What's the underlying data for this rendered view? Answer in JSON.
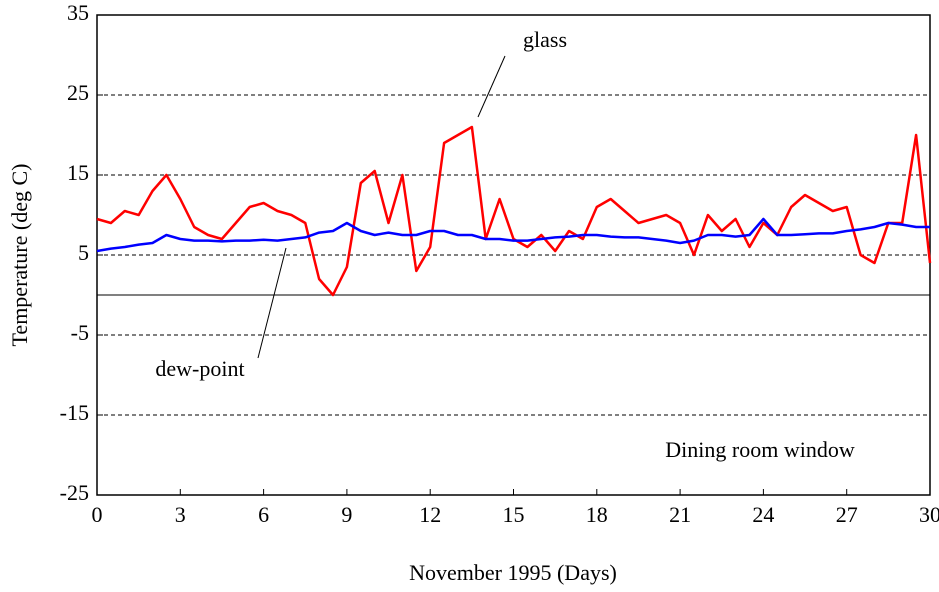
{
  "chart_data": {
    "type": "line",
    "xlabel": "November 1995 (Days)",
    "ylabel": "Temperature (deg C)",
    "annotations": [
      "glass",
      "dew-point",
      "Dining room window"
    ],
    "x": [
      0,
      0.5,
      1,
      1.5,
      2,
      2.5,
      3,
      3.5,
      4,
      4.5,
      5,
      5.5,
      6,
      6.5,
      7,
      7.5,
      8,
      8.5,
      9,
      9.5,
      10,
      10.5,
      11,
      11.5,
      12,
      12.5,
      13,
      13.5,
      14,
      14.5,
      15,
      15.5,
      16,
      16.5,
      17,
      17.5,
      18,
      18.5,
      19,
      19.5,
      20,
      20.5,
      21,
      21.5,
      22,
      22.5,
      23,
      23.5,
      24,
      24.5,
      25,
      25.5,
      26,
      26.5,
      27,
      27.5,
      28,
      28.5,
      29,
      29.5,
      30
    ],
    "series": [
      {
        "name": "glass",
        "color": "#ff0000",
        "values": [
          9.5,
          9,
          10.5,
          10,
          13,
          15,
          12,
          8.5,
          7.5,
          7,
          9,
          11,
          11.5,
          10.5,
          10,
          9,
          2,
          0,
          3.5,
          14,
          15.5,
          9,
          15,
          3,
          6,
          19,
          20,
          21,
          7,
          12,
          7,
          6,
          7.5,
          5.5,
          8,
          7,
          11,
          12,
          10.5,
          9,
          9.5,
          10,
          9,
          5,
          10,
          8,
          9.5,
          6,
          9,
          7.5,
          11,
          12.5,
          11.5,
          10.5,
          11,
          5,
          4,
          9,
          9,
          20,
          4
        ]
      },
      {
        "name": "dew-point",
        "color": "#0000ff",
        "values": [
          5.5,
          5.8,
          6,
          6.3,
          6.5,
          7.5,
          7,
          6.8,
          6.8,
          6.7,
          6.8,
          6.8,
          6.9,
          6.8,
          7,
          7.2,
          7.8,
          8,
          9,
          8,
          7.5,
          7.8,
          7.5,
          7.5,
          8,
          8,
          7.5,
          7.5,
          7,
          7,
          6.8,
          6.8,
          7,
          7.2,
          7.3,
          7.5,
          7.5,
          7.3,
          7.2,
          7.2,
          7,
          6.8,
          6.5,
          6.8,
          7.5,
          7.5,
          7.3,
          7.5,
          9.5,
          7.5,
          7.5,
          7.6,
          7.7,
          7.7,
          8,
          8.2,
          8.5,
          9,
          8.8,
          8.5,
          8.5
        ]
      }
    ],
    "xlim": [
      0,
      30
    ],
    "xticks": [
      0,
      3,
      6,
      9,
      12,
      15,
      18,
      21,
      24,
      27,
      30
    ],
    "ylim": [
      -25,
      35
    ],
    "yticks": [
      -25,
      -15,
      -5,
      5,
      15,
      25,
      35
    ],
    "grid": true
  }
}
